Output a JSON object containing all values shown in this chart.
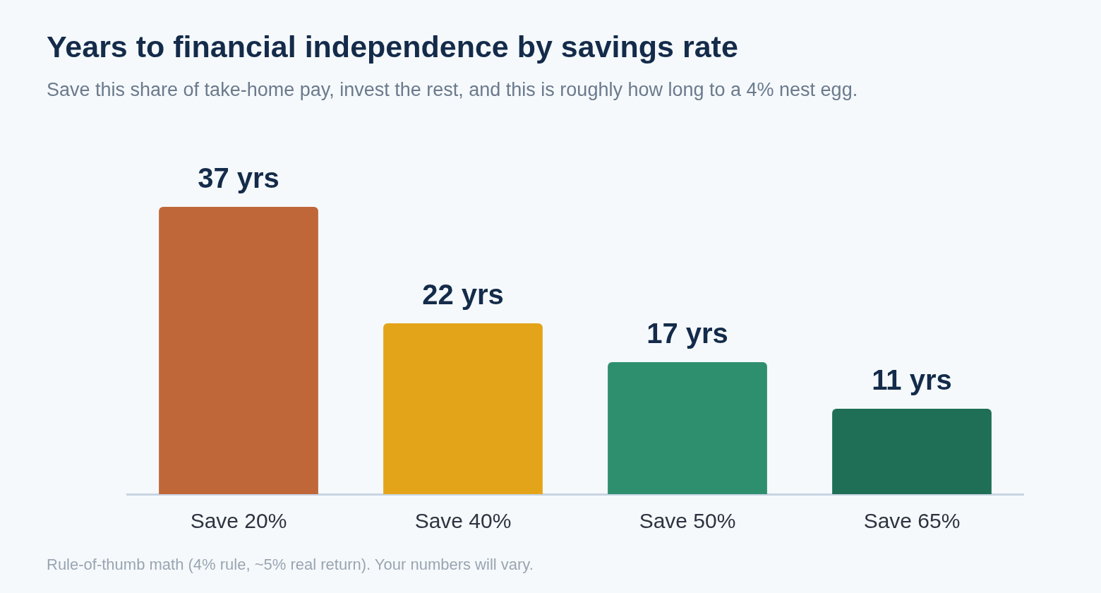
{
  "chart_data": {
    "type": "bar",
    "title": "Years to financial independence by savings rate",
    "subtitle": "Save this share of take-home pay, invest the rest, and this is roughly how long to a 4% nest egg.",
    "categories": [
      "Save 20%",
      "Save 40%",
      "Save 50%",
      "Save 65%"
    ],
    "values": [
      37,
      22,
      17,
      11
    ],
    "colors": [
      "#c0673a",
      "#e4a41a",
      "#2e8f6e",
      "#1e6f55"
    ],
    "value_labels": [
      "37 yrs",
      "22 yrs",
      "17 yrs",
      "11 yrs"
    ],
    "annotations": [
      "Rule-of-thumb math (4% rule, ~5% real return). Your numbers will vary."
    ],
    "grid": false,
    "legend": false
  }
}
